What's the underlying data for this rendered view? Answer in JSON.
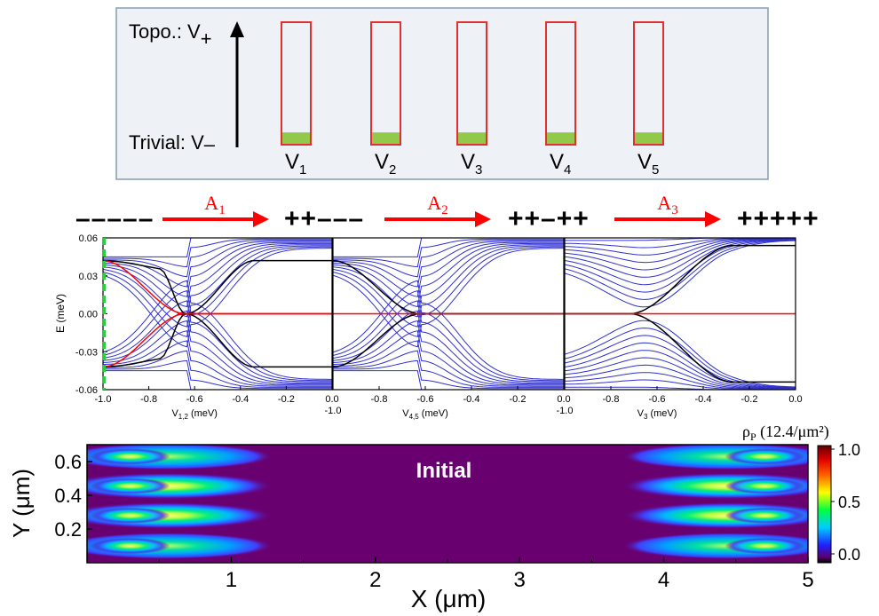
{
  "schematic": {
    "topo_label": "Topo.: V",
    "topo_sub": "+",
    "trivial_label": "Trivial: V",
    "trivial_sub": "–",
    "gates": [
      {
        "name": "V",
        "sub": "1",
        "level": 0.1
      },
      {
        "name": "V",
        "sub": "2",
        "level": 0.1
      },
      {
        "name": "V",
        "sub": "3",
        "level": 0.1
      },
      {
        "name": "V",
        "sub": "4",
        "level": 0.1
      },
      {
        "name": "V",
        "sub": "5",
        "level": 0.1
      }
    ],
    "colors": {
      "frame": "#e03030",
      "fill": "#92c94a",
      "panel_bg": "#eef2f7",
      "panel_border": "#8a9bb0"
    }
  },
  "sequence": {
    "states": [
      "-----",
      "++---",
      "++-++",
      "+++++"
    ],
    "steps": [
      {
        "name": "A",
        "sub": "1"
      },
      {
        "name": "A",
        "sub": "2"
      },
      {
        "name": "A",
        "sub": "3"
      }
    ],
    "arrow_color": "#ff0000"
  },
  "spectrum": {
    "ylabel": "E (meV)",
    "yticks": [
      "0.06",
      "0.03",
      "0.00",
      "-0.03",
      "-0.06"
    ],
    "ylim": [
      -0.06,
      0.06
    ],
    "xlim": [
      -1.0,
      0.0
    ],
    "panels": [
      {
        "xlabel": "V",
        "xsub": "1,2",
        "xunit": "(meV)",
        "xticks": [
          "-1.0",
          "-0.8",
          "-0.6",
          "-0.4",
          "-0.2",
          "0.0"
        ]
      },
      {
        "xlabel": "V",
        "xsub": "4,5",
        "xunit": "(meV)",
        "xticks": [
          "-1.0",
          "-0.8",
          "-0.6",
          "-0.4",
          "-0.2",
          "0.0"
        ]
      },
      {
        "xlabel": "V",
        "xsub": "3",
        "xunit": "(meV)",
        "xticks": [
          "-1.0",
          "-0.8",
          "-0.6",
          "-0.4",
          "-0.2",
          "0.0"
        ]
      }
    ],
    "colors": {
      "band": "#3030d0",
      "lowest": "#000000",
      "zero_mode": "#ff0000",
      "marker": "#2ecc40"
    }
  },
  "density": {
    "title": "Initial",
    "xlabel_name": "X",
    "xlabel_unit": "(μm)",
    "ylabel_name": "Y",
    "ylabel_unit": "(μm)",
    "xticks": [
      "1",
      "2",
      "3",
      "4",
      "5"
    ],
    "yticks": [
      "0.6",
      "0.4",
      "0.2"
    ],
    "xlim": [
      0,
      5
    ],
    "ylim": [
      0,
      0.7
    ],
    "colorbar": {
      "label_sym": "ρ",
      "label_sub": "P",
      "label_rest": "(12.4/μm²)",
      "ticks": [
        "1.0",
        "0.5",
        "0.0"
      ]
    },
    "background_color": "#690070"
  }
}
